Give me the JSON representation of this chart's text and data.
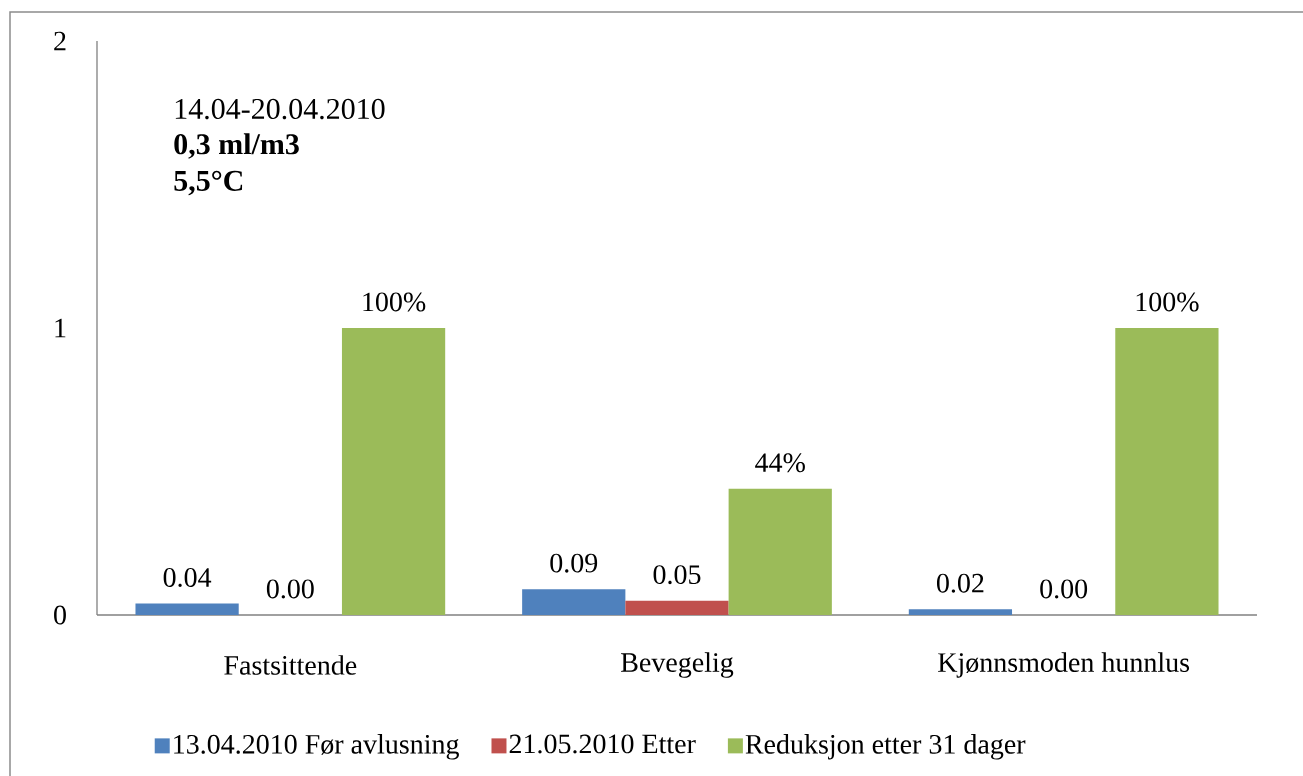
{
  "chart_data": {
    "type": "bar",
    "categories": [
      "Fastsittende",
      "Bevegelig",
      "Kjønnsmoden hunnlus"
    ],
    "series": [
      {
        "name": "13.04.2010 Før avlusning",
        "color": "#4f81bd",
        "values": [
          0.04,
          0.09,
          0.02
        ],
        "value_labels": [
          "0.04",
          "0.09",
          "0.02"
        ]
      },
      {
        "name": "21.05.2010 Etter",
        "color": "#c0504d",
        "values": [
          0,
          0.05,
          0
        ],
        "value_labels": [
          "0.00",
          "0.05",
          "0.00"
        ]
      },
      {
        "name": "Reduksjon etter 31 dager",
        "color": "#9bbb59",
        "values": [
          1,
          0.44,
          1
        ],
        "value_labels": [
          "100%",
          "44%",
          "100%"
        ]
      }
    ],
    "ylim": [
      0,
      2
    ],
    "yticks": [
      0,
      1,
      2
    ],
    "legend": "bottom",
    "annotations": [
      "14.04-20.04.2010",
      "**0,3 ml/m3**",
      "**5,5°C**"
    ]
  }
}
